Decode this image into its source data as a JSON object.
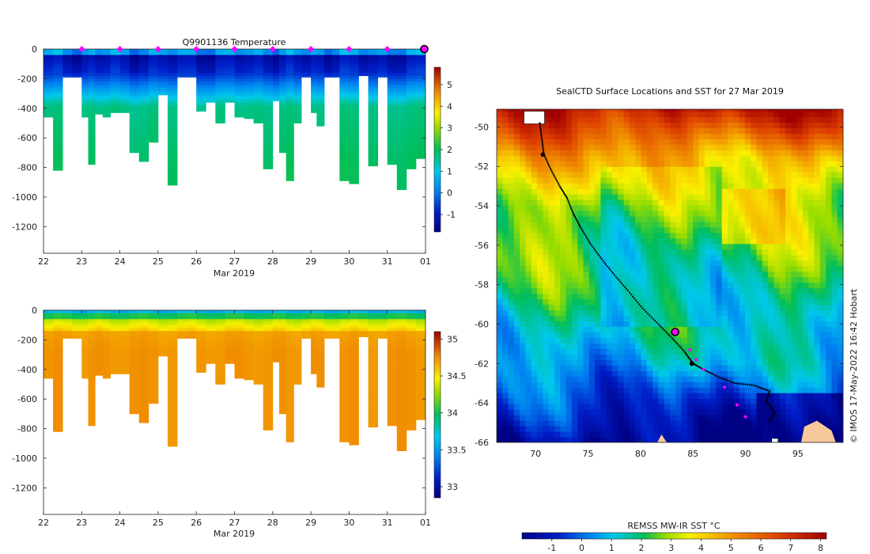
{
  "chart_data": [
    {
      "type": "heatmap",
      "title": "Q9901136  Temperature",
      "xlabel": "Mar 2019",
      "ylabel": "",
      "x_ticks": [
        "22",
        "23",
        "24",
        "25",
        "26",
        "27",
        "28",
        "29",
        "30",
        "31",
        "01"
      ],
      "y_ticks": [
        "0",
        "-200",
        "-400",
        "-600",
        "-800",
        "-1000",
        "-1200"
      ],
      "ylim": [
        -1380,
        0
      ],
      "colorbar": {
        "ticks": [
          "-1",
          "0",
          "1",
          "2",
          "3",
          "4",
          "5"
        ],
        "range": [
          -1.8,
          5.8
        ]
      },
      "profile_days": [
        22.0,
        22.25,
        22.5,
        22.75,
        23.0,
        23.17,
        23.35,
        23.55,
        23.75,
        24.0,
        24.25,
        24.5,
        24.75,
        25.0,
        25.25,
        25.5,
        25.75,
        26.0,
        26.25,
        26.5,
        26.75,
        27.0,
        27.25,
        27.5,
        27.75,
        28.0,
        28.17,
        28.35,
        28.55,
        28.75,
        29.0,
        29.15,
        29.35,
        29.55,
        29.75,
        30.0,
        30.25,
        30.5,
        30.75,
        31.0,
        31.25,
        31.5,
        31.75
      ],
      "max_depths": [
        460,
        820,
        190,
        190,
        460,
        780,
        440,
        460,
        430,
        430,
        700,
        760,
        630,
        310,
        920,
        190,
        190,
        420,
        360,
        500,
        360,
        460,
        470,
        500,
        810,
        350,
        700,
        890,
        500,
        190,
        430,
        520,
        190,
        190,
        890,
        910,
        180,
        790,
        190,
        780,
        950,
        810,
        740
      ],
      "surface_markers_days": [
        23.0,
        24.0,
        25.0,
        26.0,
        27.0,
        28.0,
        29.0,
        30.0,
        31.0
      ],
      "current_marker_day": 32.0
    },
    {
      "type": "heatmap",
      "title": "",
      "xlabel": "Mar 2019",
      "x_ticks": [
        "22",
        "23",
        "24",
        "25",
        "26",
        "27",
        "28",
        "29",
        "30",
        "31",
        "01"
      ],
      "y_ticks": [
        "0",
        "-200",
        "-400",
        "-600",
        "-800",
        "-1000",
        "-1200"
      ],
      "ylim": [
        -1380,
        0
      ],
      "colorbar": {
        "ticks": [
          "33",
          "33.5",
          "34",
          "34.5",
          "35"
        ],
        "range": [
          32.85,
          35.1
        ]
      }
    },
    {
      "type": "heatmap",
      "title": "SealCTD Surface Locations and SST for 27 Mar 2019",
      "x_ticks": [
        "70",
        "75",
        "80",
        "85",
        "90",
        "95"
      ],
      "y_ticks": [
        "-50",
        "-52",
        "-54",
        "-56",
        "-58",
        "-60",
        "-62",
        "-64",
        "-66"
      ],
      "xlim": [
        66.3,
        99.3
      ],
      "ylim": [
        -66,
        -49.1
      ],
      "colorbar_label": "REMSS MW-IR SST °C",
      "colorbar_ticks": [
        "-1",
        "0",
        "1",
        "2",
        "3",
        "4",
        "5",
        "6",
        "7",
        "8"
      ],
      "colorbar_range": [
        -2,
        8.2
      ],
      "track": [
        [
          70.4,
          -49.8
        ],
        [
          70.6,
          -50.6
        ],
        [
          70.8,
          -51.4
        ],
        [
          71.5,
          -52.2
        ],
        [
          72.3,
          -53.0
        ],
        [
          73.0,
          -53.6
        ],
        [
          73.6,
          -54.4
        ],
        [
          74.3,
          -55.1
        ],
        [
          75.2,
          -55.9
        ],
        [
          76.3,
          -56.7
        ],
        [
          77.5,
          -57.5
        ],
        [
          78.8,
          -58.3
        ],
        [
          80.2,
          -59.2
        ],
        [
          81.7,
          -60.0
        ],
        [
          83.0,
          -60.7
        ],
        [
          84.2,
          -61.4
        ],
        [
          85.0,
          -62.0
        ],
        [
          86.0,
          -62.3
        ],
        [
          87.5,
          -62.7
        ],
        [
          89.0,
          -63.0
        ],
        [
          90.8,
          -63.1
        ],
        [
          92.3,
          -63.4
        ],
        [
          92.0,
          -63.9
        ],
        [
          92.8,
          -64.5
        ],
        [
          92.2,
          -65.0
        ]
      ],
      "magenta_points": [
        [
          84.7,
          -61.3
        ],
        [
          85.3,
          -61.8
        ],
        [
          86.0,
          -62.3
        ],
        [
          88.0,
          -63.2
        ],
        [
          89.2,
          -64.1
        ],
        [
          90.0,
          -64.7
        ]
      ],
      "current_position": [
        83.3,
        -60.4
      ],
      "credit": "© IMOS 17-May-2022 16:42 Hobart"
    }
  ]
}
